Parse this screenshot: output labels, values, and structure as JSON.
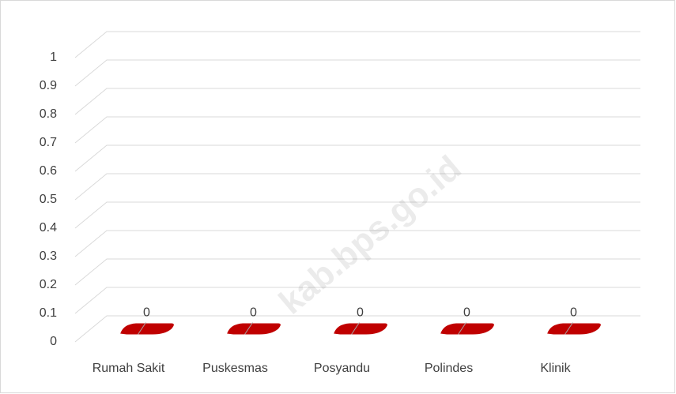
{
  "chart_data": {
    "type": "bar3d",
    "categories": [
      "Rumah Sakit",
      "Puskesmas",
      "Posyandu",
      "Polindes",
      "Klinik"
    ],
    "values": [
      0,
      0,
      0,
      0,
      0
    ],
    "color": "#c00000",
    "ylim": [
      0,
      1
    ],
    "yticks": [
      0,
      0.1,
      0.2,
      0.3,
      0.4,
      0.5,
      0.6,
      0.7,
      0.8,
      0.9,
      1
    ],
    "grid": true,
    "data_labels": true,
    "watermark": "kab.bps.go.id"
  }
}
